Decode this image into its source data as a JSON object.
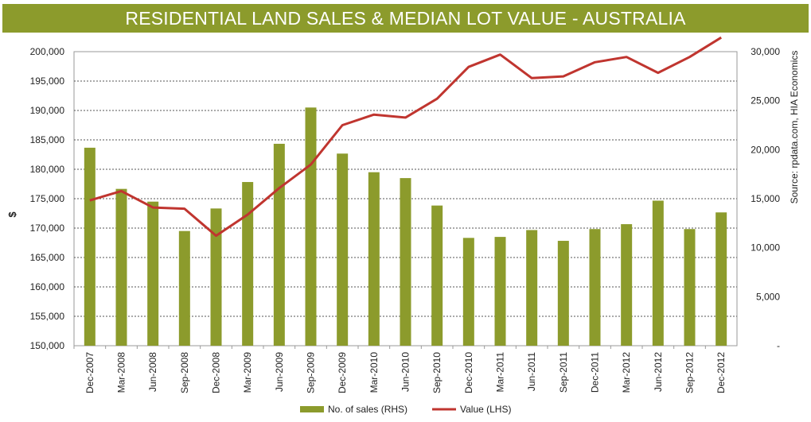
{
  "chart_data": {
    "type": "bar+line",
    "title": "RESIDENTIAL LAND SALES & MEDIAN LOT VALUE - AUSTRALIA",
    "categories": [
      "Dec-2007",
      "Mar-2008",
      "Jun-2008",
      "Sep-2008",
      "Dec-2008",
      "Mar-2009",
      "Jun-2009",
      "Sep-2009",
      "Dec-2009",
      "Mar-2010",
      "Jun-2010",
      "Sep-2010",
      "Dec-2010",
      "Mar-2011",
      "Jun-2011",
      "Sep-2011",
      "Dec-2011",
      "Mar-2012",
      "Jun-2012",
      "Sep-2012",
      "Dec-2012"
    ],
    "series": [
      {
        "name": "No. of sales (RHS)",
        "type": "bar",
        "axis": "right",
        "color": "#8c9b2c",
        "values": [
          20200,
          16000,
          14700,
          11700,
          14000,
          16700,
          20600,
          24300,
          19600,
          17700,
          17100,
          14300,
          11000,
          11100,
          11800,
          10700,
          11900,
          12400,
          14800,
          11900,
          13600
        ]
      },
      {
        "name": "Value (LHS)",
        "type": "line",
        "axis": "left",
        "color": "#c0352f",
        "values": [
          174700,
          176300,
          173500,
          173300,
          168700,
          172300,
          176800,
          180800,
          187500,
          189300,
          188800,
          192000,
          197400,
          199500,
          195500,
          195800,
          198200,
          199100,
          196400,
          199100,
          202400
        ]
      }
    ],
    "ylabel": "$",
    "ylim_left": [
      150000,
      200000
    ],
    "yticks_left": [
      "200,000",
      "195,000",
      "190,000",
      "185,000",
      "180,000",
      "175,000",
      "170,000",
      "165,000",
      "160,000",
      "155,000",
      "150,000"
    ],
    "ylim_right": [
      0,
      30000
    ],
    "yticks_right": [
      "30,000",
      "25,000",
      "20,000",
      "15,000",
      "10,000",
      "5,000",
      "-"
    ],
    "source": "Source: rpdata.com, HIA Economics",
    "legend": [
      "No. of sales (RHS)",
      "Value (LHS)"
    ],
    "grid": true
  }
}
